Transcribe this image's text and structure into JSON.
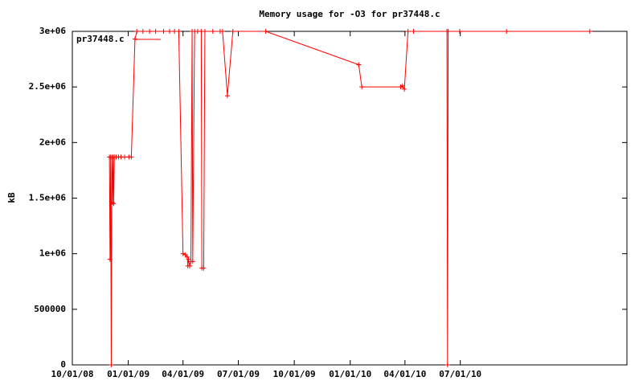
{
  "chart_data": {
    "type": "line",
    "title": "Memory usage for -O3 for pr37448.c",
    "y_label": "kB",
    "legend": "top-left",
    "x": [
      "12/01/08",
      "12/02/08",
      "12/03/08",
      "12/04/08",
      "12/05/08",
      "12/06/08",
      "12/07/08",
      "12/08/08",
      "12/09/08",
      "12/12/08",
      "12/16/08",
      "12/20/08",
      "12/26/08",
      "01/02/09",
      "01/06/09",
      "01/12/09",
      "01/15/09",
      "01/25/09",
      "02/05/09",
      "02/15/09",
      "02/28/09",
      "03/10/09",
      "03/18/09",
      "03/25/09",
      "04/01/09",
      "04/05/09",
      "04/08/09",
      "04/09/09",
      "04/10/09",
      "04/12/09",
      "04/14/09",
      "04/16/09",
      "04/17/09",
      "04/20/09",
      "04/25/09",
      "05/01/09",
      "05/02/09",
      "05/05/09",
      "05/07/09",
      "05/20/09",
      "06/01/09",
      "06/05/09",
      "06/13/09",
      "06/22/09",
      "08/15/09",
      "01/15/10",
      "01/20/10",
      "03/25/10",
      "03/28/10",
      "03/31/10",
      "04/06/10",
      "04/15/10",
      "06/09/10",
      "06/10/10",
      "06/11/10",
      "06/30/10",
      "09/15/10",
      "01/30/11"
    ],
    "series": [
      {
        "name": "pr37448.c",
        "color": "#ff0000",
        "values": [
          1870000,
          950000,
          1870000,
          0,
          1870000,
          1460000,
          1870000,
          1450000,
          1870000,
          1870000,
          1870000,
          1870000,
          1870000,
          1870000,
          1870000,
          2930000,
          3000000,
          3000000,
          3000000,
          3000000,
          3000000,
          3000000,
          3000000,
          3000000,
          1000000,
          990000,
          970000,
          890000,
          950000,
          890000,
          930000,
          3000000,
          930000,
          3000000,
          3000000,
          3000000,
          870000,
          870000,
          3000000,
          3000000,
          3000000,
          3000000,
          2420000,
          3000000,
          3000000,
          2700000,
          2500000,
          2500000,
          2510000,
          2480000,
          3000000,
          3000000,
          3000000,
          0,
          3000000,
          3000000,
          3000000,
          3000000
        ]
      }
    ],
    "xlim": [
      "10/01/08",
      "04/01/11"
    ],
    "xticks": [
      "10/01/08",
      "01/01/09",
      "04/01/09",
      "07/01/09",
      "10/01/09",
      "01/01/10",
      "04/01/10",
      "07/01/10"
    ],
    "ylim": [
      0,
      3000000
    ],
    "yticks": [
      0,
      500000,
      {
        "value": 1000000,
        "label": "1e+06"
      },
      {
        "value": 1500000,
        "label": "1.5e+06"
      },
      {
        "value": 2000000,
        "label": "2e+06"
      },
      {
        "value": 2500000,
        "label": "2.5e+06"
      },
      {
        "value": 3000000,
        "label": "3e+06"
      }
    ]
  }
}
